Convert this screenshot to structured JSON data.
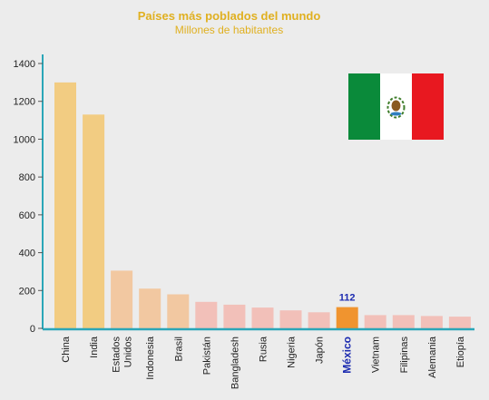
{
  "chart_data": {
    "type": "bar",
    "title": "Países más poblados del mundo",
    "subtitle": "Millones de habitantes",
    "xlabel": "",
    "ylabel": "",
    "ylim": [
      0,
      1450
    ],
    "yticks": [
      0,
      200,
      400,
      600,
      800,
      1000,
      1200,
      1400
    ],
    "grid": false,
    "legend": "none",
    "categories": [
      [
        "China"
      ],
      [
        "India"
      ],
      [
        "Estados",
        "Unidos"
      ],
      [
        "Indonesia"
      ],
      [
        "Brasil"
      ],
      [
        "Pakistán"
      ],
      [
        "Bangladesh"
      ],
      [
        "Rusia"
      ],
      [
        "Nigeria"
      ],
      [
        "Japón"
      ],
      [
        "México"
      ],
      [
        "Vietnam"
      ],
      [
        "Filipinas"
      ],
      [
        "Alemania"
      ],
      [
        "Etiopía"
      ]
    ],
    "values": [
      1300,
      1130,
      305,
      210,
      180,
      140,
      125,
      110,
      95,
      85,
      112,
      70,
      70,
      65,
      62
    ],
    "highlight": {
      "index": 10,
      "label": "112",
      "color": "#f08c1e"
    },
    "colors": {
      "axis": "#2aa6b8",
      "bar_tall": "#f2c978",
      "bar_mid": "#f2c49a",
      "bar_low": "#f2bcb4"
    },
    "flag": {
      "name": "mexico-flag",
      "green": "#0a8a3a",
      "white": "#ffffff",
      "red": "#e81820"
    }
  }
}
